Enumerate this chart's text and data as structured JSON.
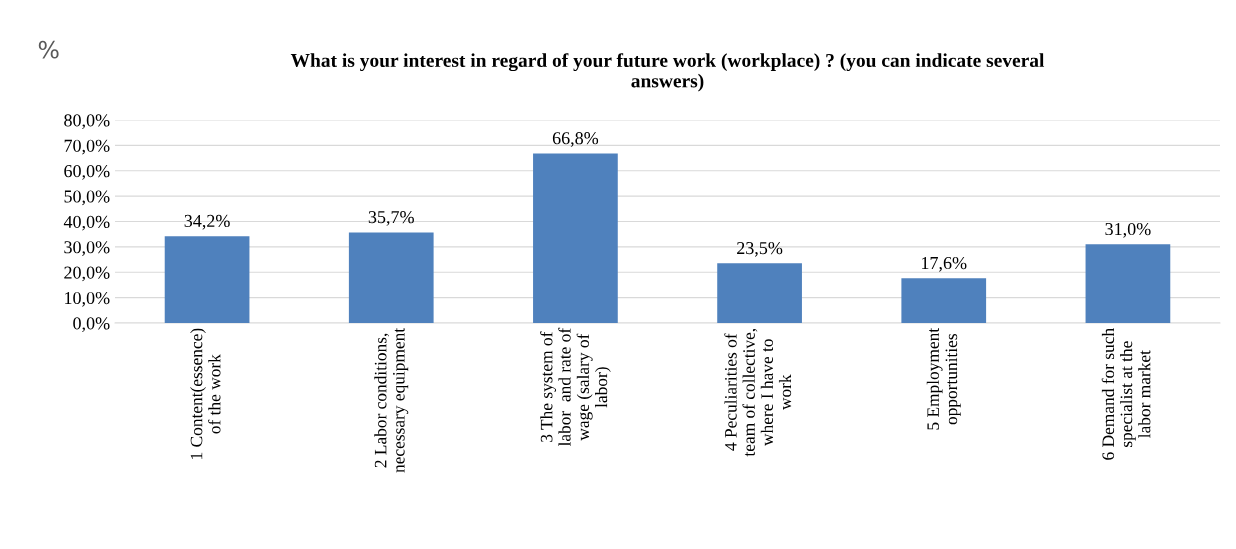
{
  "chart_data": {
    "type": "bar",
    "title": "What is your interest in regard of your future work (workplace) ? (you can indicate several\nanswers)",
    "ylabel": "%",
    "categories": [
      "1 Content(essence)\nof the work",
      "2 Labor conditions,\nnecessary equipment",
      "3 The system of\nlabor  and rate of\nwage (salary of\nlabor)",
      "4 Peculiarities of\nteam of collective,\nwhere I have to\nwork",
      "5 Employment\nopportunities",
      "6 Demand for such\nspecialist at the\nlabor market"
    ],
    "values": [
      34.2,
      35.7,
      66.8,
      23.5,
      17.6,
      31.0
    ],
    "value_labels": [
      "34,2%",
      "35,7%",
      "66,8%",
      "23,5%",
      "17,6%",
      "31,0%"
    ],
    "color": "#4f81bd",
    "ylim": [
      0,
      80
    ],
    "yticks": [
      {
        "value": 0,
        "label": "0,0%"
      },
      {
        "value": 10,
        "label": "10,0%"
      },
      {
        "value": 20,
        "label": "20,0%"
      },
      {
        "value": 30,
        "label": "30,0%"
      },
      {
        "value": 40,
        "label": "40,0%"
      },
      {
        "value": 50,
        "label": "50,0%"
      },
      {
        "value": 60,
        "label": "60,0%"
      },
      {
        "value": 70,
        "label": "70,0%"
      },
      {
        "value": 80,
        "label": "80,0%"
      }
    ],
    "grid": "y",
    "legend": false
  }
}
